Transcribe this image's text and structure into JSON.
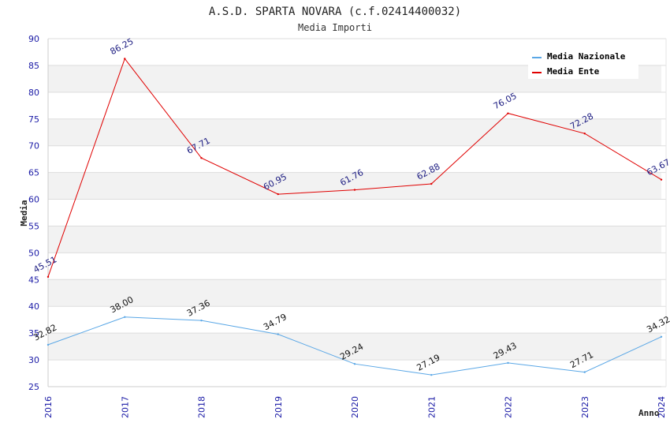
{
  "chart_data": {
    "type": "line",
    "title": "A.S.D. SPARTA NOVARA (c.f.02414400032)",
    "subtitle": "Media Importi",
    "xlabel": "Anno",
    "ylabel": "Media",
    "ylim": [
      25,
      90
    ],
    "yticks": [
      25,
      30,
      35,
      40,
      45,
      50,
      55,
      60,
      65,
      70,
      75,
      80,
      85,
      90
    ],
    "categories": [
      "2016",
      "2017",
      "2018",
      "2019",
      "2020",
      "2021",
      "2022",
      "2023",
      "2024"
    ],
    "legend_position": "top-right",
    "series": [
      {
        "name": "Media Nazionale",
        "color": "#5aa7e6",
        "values": [
          32.82,
          38.0,
          37.36,
          34.79,
          29.24,
          27.19,
          29.43,
          27.71,
          34.32
        ],
        "labels": [
          "32.82",
          "38.00",
          "37.36",
          "34.79",
          "29.24",
          "27.19",
          "29.43",
          "27.71",
          "34.32"
        ]
      },
      {
        "name": "Media Ente",
        "color": "#e00000",
        "values": [
          45.51,
          86.25,
          67.71,
          60.95,
          61.76,
          62.88,
          76.05,
          72.28,
          63.67
        ],
        "labels": [
          "45.51",
          "86.25",
          "67.71",
          "60.95",
          "61.76",
          "62.88",
          "76.05",
          "72.28",
          "63.67"
        ]
      }
    ]
  }
}
